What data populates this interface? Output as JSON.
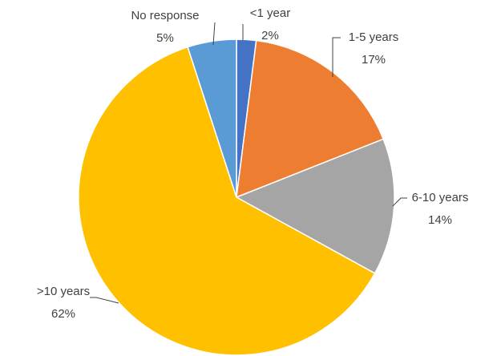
{
  "chart_data": {
    "type": "pie",
    "categories": [
      "<1 year",
      "1-5 years",
      "6-10 years",
      ">10 years",
      "No response"
    ],
    "values": [
      2,
      17,
      14,
      62,
      5
    ],
    "value_labels": [
      "2%",
      "17%",
      "14%",
      "62%",
      "5%"
    ],
    "colors": [
      "#4472c4",
      "#ed7d31",
      "#a5a5a5",
      "#ffc000",
      "#5b9bd5"
    ]
  }
}
